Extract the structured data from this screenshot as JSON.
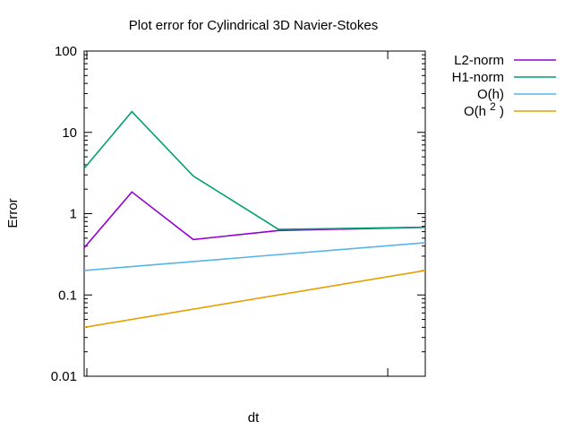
{
  "chart_data": {
    "type": "line",
    "title": "Plot error for Cylindrical 3D Navier-Stokes",
    "xlabel": "dt",
    "ylabel": "Error",
    "yscale": "log",
    "ylim": [
      0.01,
      100
    ],
    "xlim": [
      0,
      1
    ],
    "ytick_labels": [
      "0.01",
      "0.1",
      "1",
      "10",
      "100"
    ],
    "ytick_values": [
      0.01,
      0.1,
      1,
      10,
      100
    ],
    "legend_position": "outside-top-right",
    "series": [
      {
        "name": "L2-norm",
        "color": "#9400d3",
        "points": [
          [
            0.0,
            0.38
          ],
          [
            0.14,
            1.85
          ],
          [
            0.32,
            0.48
          ],
          [
            0.57,
            0.62
          ],
          [
            1.0,
            0.68
          ]
        ]
      },
      {
        "name": "H1-norm",
        "color": "#009e73",
        "points": [
          [
            0.0,
            3.6
          ],
          [
            0.14,
            18.0
          ],
          [
            0.32,
            2.9
          ],
          [
            0.57,
            0.64
          ],
          [
            1.0,
            0.68
          ]
        ]
      },
      {
        "name": "O(h)",
        "color": "#56b4e9",
        "points": [
          [
            0.0,
            0.2
          ],
          [
            1.0,
            0.44
          ]
        ]
      },
      {
        "name": "O(h²)",
        "name_base": "O(h",
        "name_sup": "2",
        "name_close": ")",
        "color": "#e69f00",
        "points": [
          [
            0.0,
            0.04
          ],
          [
            1.0,
            0.2
          ]
        ]
      }
    ]
  }
}
